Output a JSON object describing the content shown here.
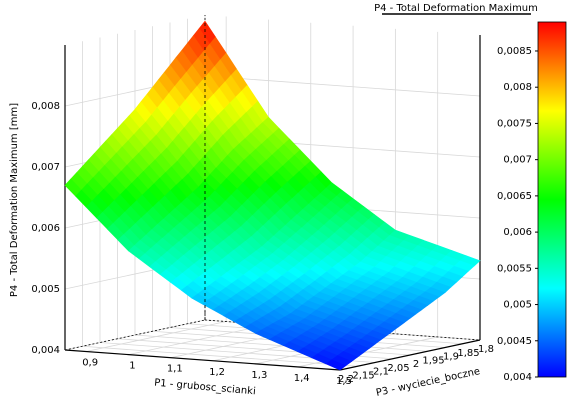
{
  "chart_data": {
    "type": "surface",
    "title": "P4 - Total Deformation Maximum",
    "zlabel": "P4 - Total Deformation Maximum  [mm]",
    "xlabel": "P1 - grubosc_scianki",
    "ylabel": "P3 - wyciecie_boczne",
    "x": [
      0.85,
      1,
      1.15,
      1.3,
      1.5
    ],
    "y": [
      2.2,
      2.1,
      2,
      1.9,
      1.8
    ],
    "z": [
      [
        0.0067,
        0.0057,
        0.005,
        0.0045,
        0.004
      ],
      [
        0.0072,
        0.0061,
        0.0053,
        0.0047,
        0.0043
      ],
      [
        0.0077,
        0.0065,
        0.0056,
        0.005,
        0.0046
      ],
      [
        0.0083,
        0.007,
        0.006,
        0.0053,
        0.0049
      ],
      [
        0.0089,
        0.0074,
        0.0064,
        0.0057,
        0.0053
      ]
    ],
    "xlim": [
      0.85,
      1.5
    ],
    "ylim": [
      2.2,
      1.8
    ],
    "zlim": [
      0.004,
      0.009
    ],
    "xticks": [
      {
        "value": 0.9,
        "label": "0,9"
      },
      1,
      {
        "value": 1.1,
        "label": "1,1"
      },
      {
        "value": 1.2,
        "label": "1,2"
      },
      {
        "value": 1.3,
        "label": "1,3"
      },
      {
        "value": 1.4,
        "label": "1,4"
      },
      {
        "value": 1.5,
        "label": "1,5"
      }
    ],
    "yticks": [
      {
        "value": 2.2,
        "label": "2,2"
      },
      {
        "value": 2.15,
        "label": "2,15"
      },
      {
        "value": 2.1,
        "label": "2,1"
      },
      {
        "value": 2.05,
        "label": "2,05"
      },
      2,
      {
        "value": 1.95,
        "label": "1,95"
      },
      {
        "value": 1.9,
        "label": "1,9"
      },
      {
        "value": 1.85,
        "label": "1,85"
      },
      {
        "value": 1.8,
        "label": "1,8"
      }
    ],
    "zticks": [
      {
        "value": 0.004,
        "label": "0,004"
      },
      {
        "value": 0.005,
        "label": "0,005"
      },
      {
        "value": 0.006,
        "label": "0,006"
      },
      {
        "value": 0.007,
        "label": "0,007"
      },
      {
        "value": 0.008,
        "label": "0,008"
      }
    ],
    "colorbar_lim": [
      0.004,
      0.0089
    ],
    "colorbar_ticks": [
      {
        "value": 0.004,
        "label": "0,004"
      },
      {
        "value": 0.0045,
        "label": "0,0045"
      },
      {
        "value": 0.005,
        "label": "0,005"
      },
      {
        "value": 0.0055,
        "label": "0,0055"
      },
      {
        "value": 0.006,
        "label": "0,006"
      },
      {
        "value": 0.0065,
        "label": "0,0065"
      },
      {
        "value": 0.007,
        "label": "0,007"
      },
      {
        "value": 0.0075,
        "label": "0,0075"
      },
      {
        "value": 0.008,
        "label": "0,008"
      },
      {
        "value": 0.0085,
        "label": "0,0085"
      }
    ],
    "colormap": [
      "#0000ff",
      "#00ffff",
      "#00ff00",
      "#ffff00",
      "#ff0000"
    ],
    "grid": true
  }
}
